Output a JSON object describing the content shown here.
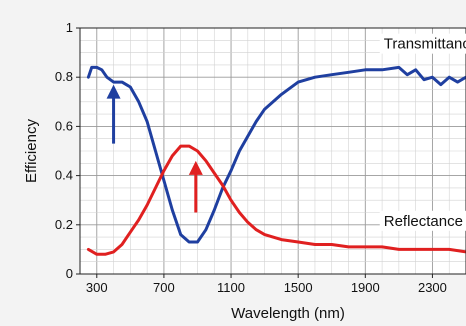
{
  "chart_data": {
    "type": "line",
    "xlabel": "Wavelength (nm)",
    "ylabel": "Efficiency",
    "xlim": [
      200,
      2500
    ],
    "ylim": [
      0,
      1
    ],
    "x_ticks": [
      300,
      700,
      1100,
      1500,
      1900,
      2300
    ],
    "y_ticks": [
      0,
      0.2,
      0.4,
      0.6,
      0.8,
      1
    ],
    "y_tick_labels": [
      "0",
      "0.2",
      "0.4",
      "0.6",
      "0.8",
      "1"
    ],
    "grid": true,
    "series": [
      {
        "name": "Transmittance",
        "color": "#1f3fa0",
        "x": [
          250,
          270,
          300,
          330,
          360,
          400,
          450,
          500,
          550,
          600,
          650,
          700,
          750,
          800,
          850,
          900,
          950,
          1000,
          1050,
          1100,
          1150,
          1200,
          1250,
          1300,
          1400,
          1500,
          1600,
          1700,
          1800,
          1900,
          2000,
          2100,
          2150,
          2200,
          2250,
          2300,
          2350,
          2400,
          2450,
          2500
        ],
        "y": [
          0.8,
          0.84,
          0.84,
          0.83,
          0.8,
          0.78,
          0.78,
          0.76,
          0.7,
          0.62,
          0.5,
          0.38,
          0.26,
          0.16,
          0.13,
          0.13,
          0.18,
          0.26,
          0.35,
          0.42,
          0.5,
          0.56,
          0.62,
          0.67,
          0.73,
          0.78,
          0.8,
          0.81,
          0.82,
          0.83,
          0.83,
          0.84,
          0.81,
          0.83,
          0.79,
          0.8,
          0.77,
          0.8,
          0.78,
          0.8
        ]
      },
      {
        "name": "Reflectance",
        "color": "#e02020",
        "x": [
          250,
          300,
          350,
          400,
          450,
          500,
          550,
          600,
          650,
          700,
          750,
          800,
          850,
          900,
          950,
          1000,
          1050,
          1100,
          1150,
          1200,
          1250,
          1300,
          1400,
          1500,
          1600,
          1700,
          1800,
          1900,
          2000,
          2100,
          2200,
          2300,
          2400,
          2500
        ],
        "y": [
          0.1,
          0.08,
          0.08,
          0.09,
          0.12,
          0.17,
          0.22,
          0.28,
          0.35,
          0.42,
          0.48,
          0.52,
          0.52,
          0.5,
          0.46,
          0.41,
          0.36,
          0.3,
          0.25,
          0.21,
          0.18,
          0.16,
          0.14,
          0.13,
          0.12,
          0.12,
          0.11,
          0.11,
          0.11,
          0.1,
          0.1,
          0.1,
          0.1,
          0.09
        ]
      }
    ],
    "annotations": [
      {
        "text": "Transmittance",
        "x": 2010,
        "y": 0.92
      },
      {
        "text": "Reflectance",
        "x": 2010,
        "y": 0.2
      }
    ],
    "arrows": [
      {
        "color": "#1f3fa0",
        "x": 400,
        "y_from": 0.53,
        "y_to": 0.77
      },
      {
        "color": "#e02020",
        "x": 890,
        "y_from": 0.25,
        "y_to": 0.46
      }
    ]
  }
}
